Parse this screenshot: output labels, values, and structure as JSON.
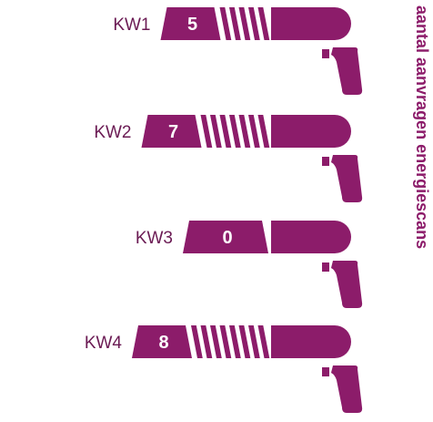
{
  "chart_data": {
    "type": "bar",
    "title": "aantal aanvragen energiescans",
    "categories": [
      "KW1",
      "KW2",
      "KW3",
      "KW4"
    ],
    "values": [
      5,
      7,
      0,
      8
    ],
    "orientation": "horizontal",
    "colors": {
      "primary": "#8c1c6a",
      "label": "#6b1b54"
    }
  }
}
